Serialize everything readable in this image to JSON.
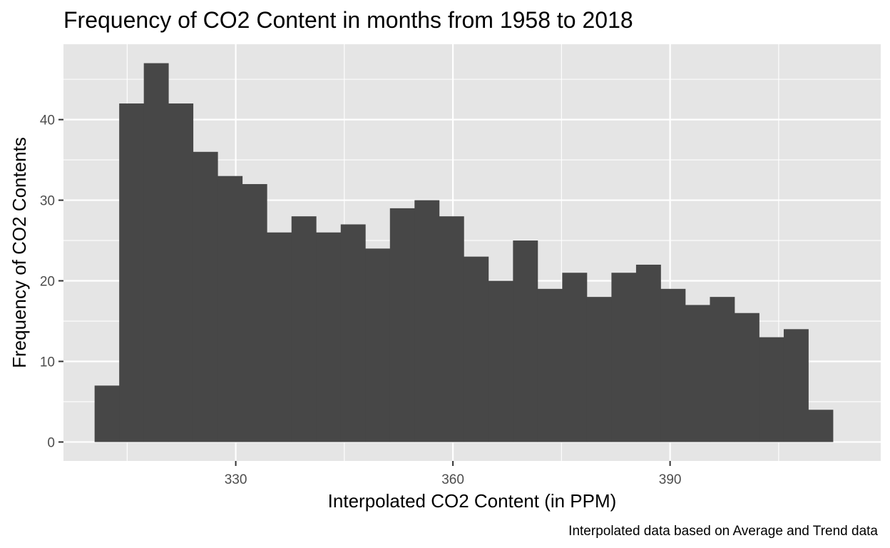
{
  "chart_data": {
    "type": "histogram",
    "title": "Frequency of CO2 Content in months from 1958 to 2018",
    "xlabel": "Interpolated CO2 Content (in PPM)",
    "ylabel": "Frequency of CO2 Contents",
    "caption": "Interpolated data based on Average and Trend data",
    "bin_start": 310.5,
    "bin_width": 3.4,
    "values": [
      7,
      42,
      47,
      42,
      36,
      33,
      32,
      26,
      28,
      26,
      27,
      24,
      29,
      30,
      28,
      23,
      20,
      25,
      19,
      21,
      18,
      21,
      22,
      19,
      17,
      18,
      16,
      13,
      14,
      4
    ],
    "xlim": [
      306.2,
      419.1
    ],
    "ylim": [
      -2.35,
      49.35
    ],
    "x_ticks": [
      330,
      360,
      390
    ],
    "x_tick_labels": [
      "330",
      "360",
      "390"
    ],
    "y_ticks": [
      0,
      10,
      20,
      30,
      40
    ],
    "y_tick_labels": [
      "0",
      "10",
      "20",
      "30",
      "40"
    ],
    "grid": true,
    "colors": {
      "panel": "#e5e5e5",
      "grid": "#ffffff",
      "bar": "#474747"
    }
  }
}
